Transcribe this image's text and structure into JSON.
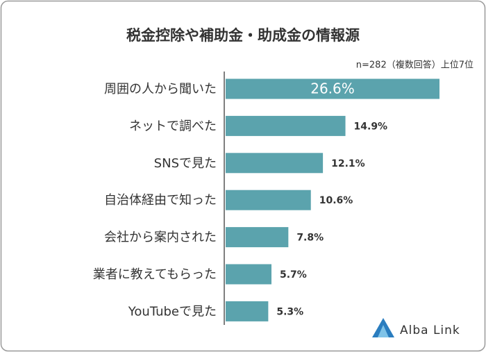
{
  "chart_data": {
    "type": "barh",
    "title": "税金控除や補助金・助成金の情報源",
    "subtitle": "n=282（複数回答）上位7位",
    "categories": [
      "周囲の人から聞いた",
      "ネットで調べた",
      "SNSで見た",
      "自治体経由で知った",
      "会社から案内された",
      "業者に教えてもらった",
      "YouTubeで見た"
    ],
    "values": [
      26.6,
      14.9,
      12.1,
      10.6,
      7.8,
      5.7,
      5.3
    ],
    "value_labels": [
      "26.6%",
      "14.9%",
      "12.1%",
      "10.6%",
      "7.8%",
      "5.7%",
      "5.3%"
    ],
    "color": "#5ba3ad"
  },
  "logo": "Alba Link"
}
